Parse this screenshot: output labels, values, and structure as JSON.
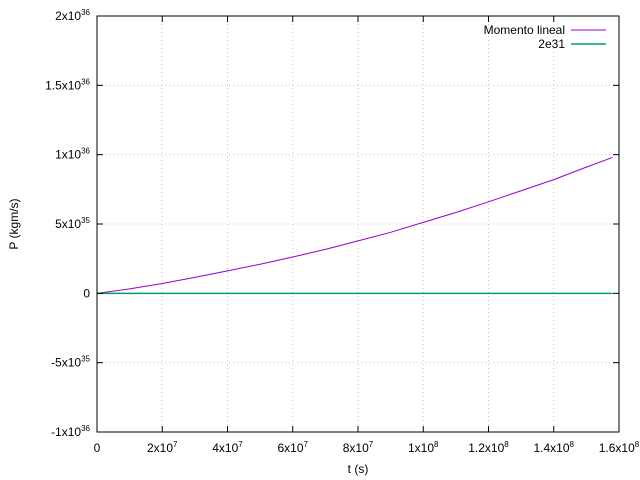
{
  "chart_data": {
    "type": "line",
    "xlabel": "t (s)",
    "ylabel": "P (kgm/s)",
    "xlim": [
      0,
      160000000.0
    ],
    "ylim": [
      -1e+36,
      2e+36
    ],
    "grid": true,
    "legend_position": "top-right",
    "x_ticks": [
      {
        "value": 0,
        "mant": "0",
        "exp": ""
      },
      {
        "value": 20000000.0,
        "mant": "2x10",
        "exp": "7"
      },
      {
        "value": 40000000.0,
        "mant": "4x10",
        "exp": "7"
      },
      {
        "value": 60000000.0,
        "mant": "6x10",
        "exp": "7"
      },
      {
        "value": 80000000.0,
        "mant": "8x10",
        "exp": "7"
      },
      {
        "value": 100000000.0,
        "mant": "1x10",
        "exp": "8"
      },
      {
        "value": 120000000.0,
        "mant": "1.2x10",
        "exp": "8"
      },
      {
        "value": 140000000.0,
        "mant": "1.4x10",
        "exp": "8"
      },
      {
        "value": 160000000.0,
        "mant": "1.6x10",
        "exp": "8"
      }
    ],
    "y_ticks": [
      {
        "value": 2e+36,
        "mant": "2x10",
        "exp": "36"
      },
      {
        "value": 1.5e+36,
        "mant": "1.5x10",
        "exp": "36"
      },
      {
        "value": 1e+36,
        "mant": "1x10",
        "exp": "36"
      },
      {
        "value": 5e+35,
        "mant": "5x10",
        "exp": "35"
      },
      {
        "value": 0,
        "mant": "0",
        "exp": ""
      },
      {
        "value": -5e+35,
        "mant": "-5x10",
        "exp": "35"
      },
      {
        "value": -1e+36,
        "mant": "-1x10",
        "exp": "36"
      }
    ],
    "series": [
      {
        "name": "Momento lineal",
        "color": "#9400d3",
        "x": [
          0,
          10000000.0,
          20000000.0,
          30000000.0,
          40000000.0,
          50000000.0,
          60000000.0,
          70000000.0,
          80000000.0,
          90000000.0,
          100000000.0,
          110000000.0,
          120000000.0,
          130000000.0,
          140000000.0,
          150000000.0,
          158000000.0
        ],
        "y": [
          0,
          3.2e+34,
          7.1e+34,
          1.15e+35,
          1.62e+35,
          2.1e+35,
          2.62e+35,
          3.17e+35,
          3.78e+35,
          4.4e+35,
          5.12e+35,
          5.83e+35,
          6.6e+35,
          7.4e+35,
          8.2e+35,
          9.1e+35,
          9.8e+35
        ]
      },
      {
        "name": "2e31",
        "color": "#009e73",
        "x": [
          0,
          158000000.0
        ],
        "y": [
          2e+31,
          2e+31
        ]
      }
    ]
  }
}
